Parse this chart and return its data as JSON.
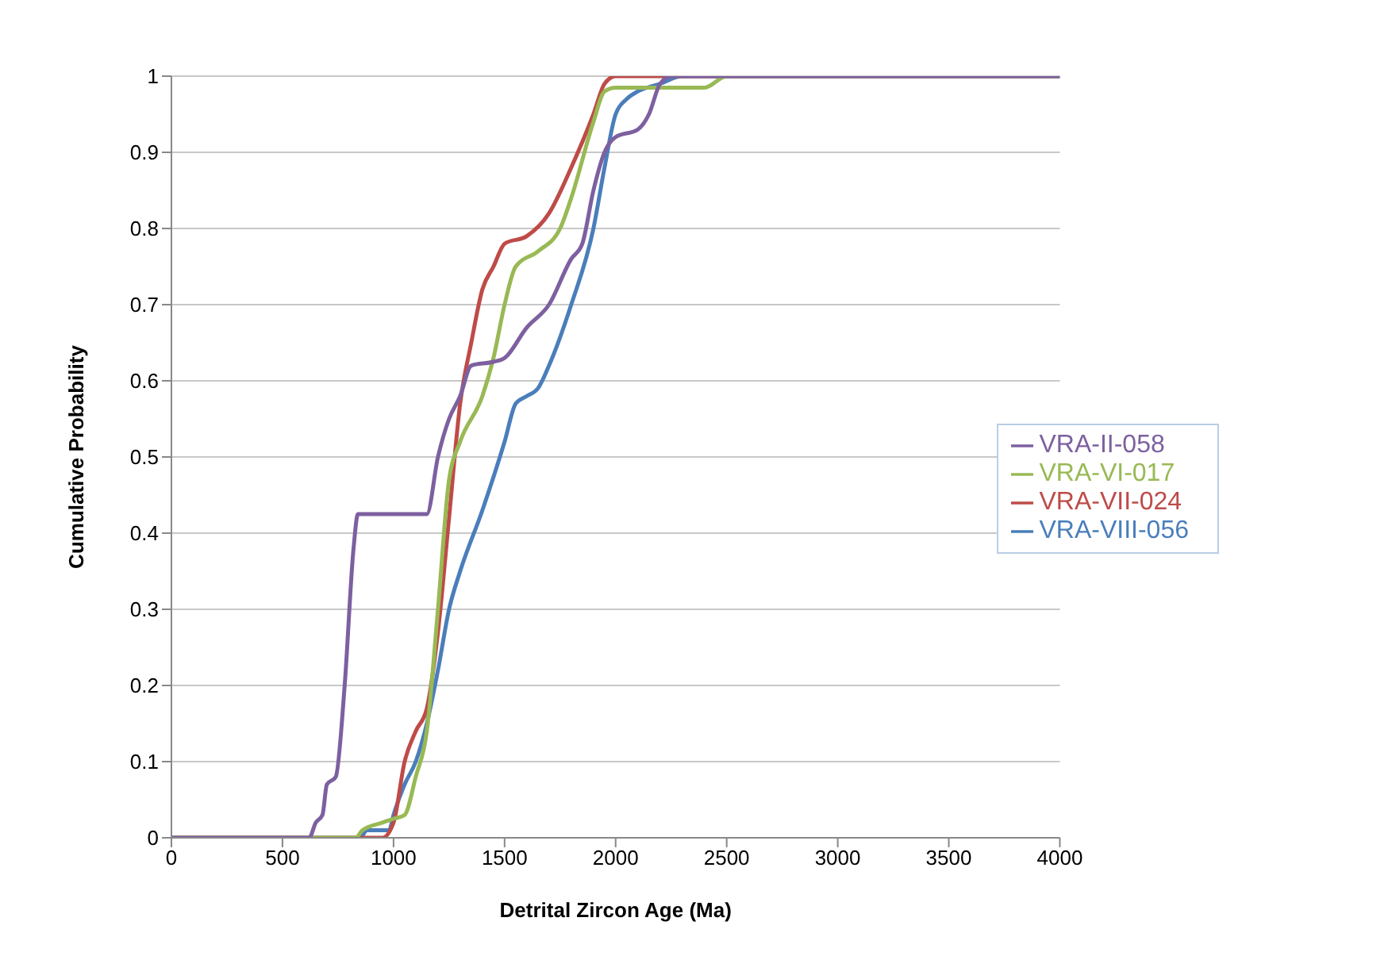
{
  "chart_data": {
    "type": "line",
    "xlabel": "Detrital Zircon Age (Ma)",
    "ylabel": "Cumulative Probability",
    "xlim": [
      0,
      4000
    ],
    "xticks": [
      0,
      500,
      1000,
      1500,
      2000,
      2500,
      3000,
      3500,
      4000
    ],
    "ylim": [
      0,
      1
    ],
    "yticks": [
      0,
      0.1,
      0.2,
      0.3,
      0.4,
      0.5,
      0.6,
      0.7,
      0.8,
      0.9,
      1
    ],
    "grid": "y",
    "legend": "right",
    "marker": "none",
    "line_style": "solid",
    "series": [
      {
        "name": "VRA-VIII-056",
        "color": "#4a7ebb",
        "x": [
          0,
          850,
          880,
          980,
          1000,
          1050,
          1100,
          1150,
          1200,
          1250,
          1300,
          1400,
          1500,
          1550,
          1600,
          1650,
          1700,
          1800,
          1900,
          1950,
          2000,
          2050,
          2100,
          2200,
          2300,
          4000
        ],
        "values": [
          0,
          0,
          0.01,
          0.01,
          0.03,
          0.07,
          0.1,
          0.15,
          0.22,
          0.3,
          0.35,
          0.43,
          0.52,
          0.57,
          0.58,
          0.59,
          0.62,
          0.7,
          0.8,
          0.88,
          0.95,
          0.97,
          0.98,
          0.99,
          1,
          1
        ]
      },
      {
        "name": "VRA-VII-024",
        "color": "#be4b48",
        "x": [
          0,
          950,
          1000,
          1050,
          1100,
          1150,
          1200,
          1250,
          1300,
          1350,
          1400,
          1450,
          1500,
          1600,
          1700,
          1800,
          1900,
          1950,
          2000,
          4000
        ],
        "values": [
          0,
          0,
          0.02,
          0.1,
          0.14,
          0.17,
          0.27,
          0.42,
          0.57,
          0.65,
          0.72,
          0.75,
          0.78,
          0.79,
          0.82,
          0.88,
          0.95,
          0.99,
          1,
          1
        ]
      },
      {
        "name": "VRA-VI-017",
        "color": "#98b954",
        "x": [
          0,
          830,
          860,
          950,
          1000,
          1050,
          1100,
          1150,
          1200,
          1250,
          1300,
          1400,
          1450,
          1500,
          1550,
          1650,
          1750,
          1800,
          1900,
          1950,
          2000,
          2400,
          2500,
          4000
        ],
        "values": [
          0,
          0,
          0.01,
          0.02,
          0.025,
          0.03,
          0.08,
          0.14,
          0.3,
          0.47,
          0.52,
          0.58,
          0.63,
          0.7,
          0.75,
          0.77,
          0.8,
          0.84,
          0.94,
          0.98,
          0.985,
          0.985,
          1,
          1
        ]
      },
      {
        "name": "VRA-II-058",
        "color": "#7d60a0",
        "x": [
          0,
          620,
          650,
          680,
          700,
          740,
          780,
          820,
          840,
          1150,
          1200,
          1250,
          1300,
          1350,
          1450,
          1500,
          1600,
          1700,
          1800,
          1850,
          1900,
          1950,
          2000,
          2100,
          2150,
          2200,
          2250,
          4000
        ],
        "values": [
          0,
          0,
          0.02,
          0.03,
          0.07,
          0.08,
          0.2,
          0.38,
          0.425,
          0.425,
          0.5,
          0.55,
          0.58,
          0.62,
          0.625,
          0.63,
          0.67,
          0.7,
          0.76,
          0.78,
          0.85,
          0.9,
          0.92,
          0.93,
          0.95,
          0.99,
          1,
          1
        ]
      }
    ]
  }
}
